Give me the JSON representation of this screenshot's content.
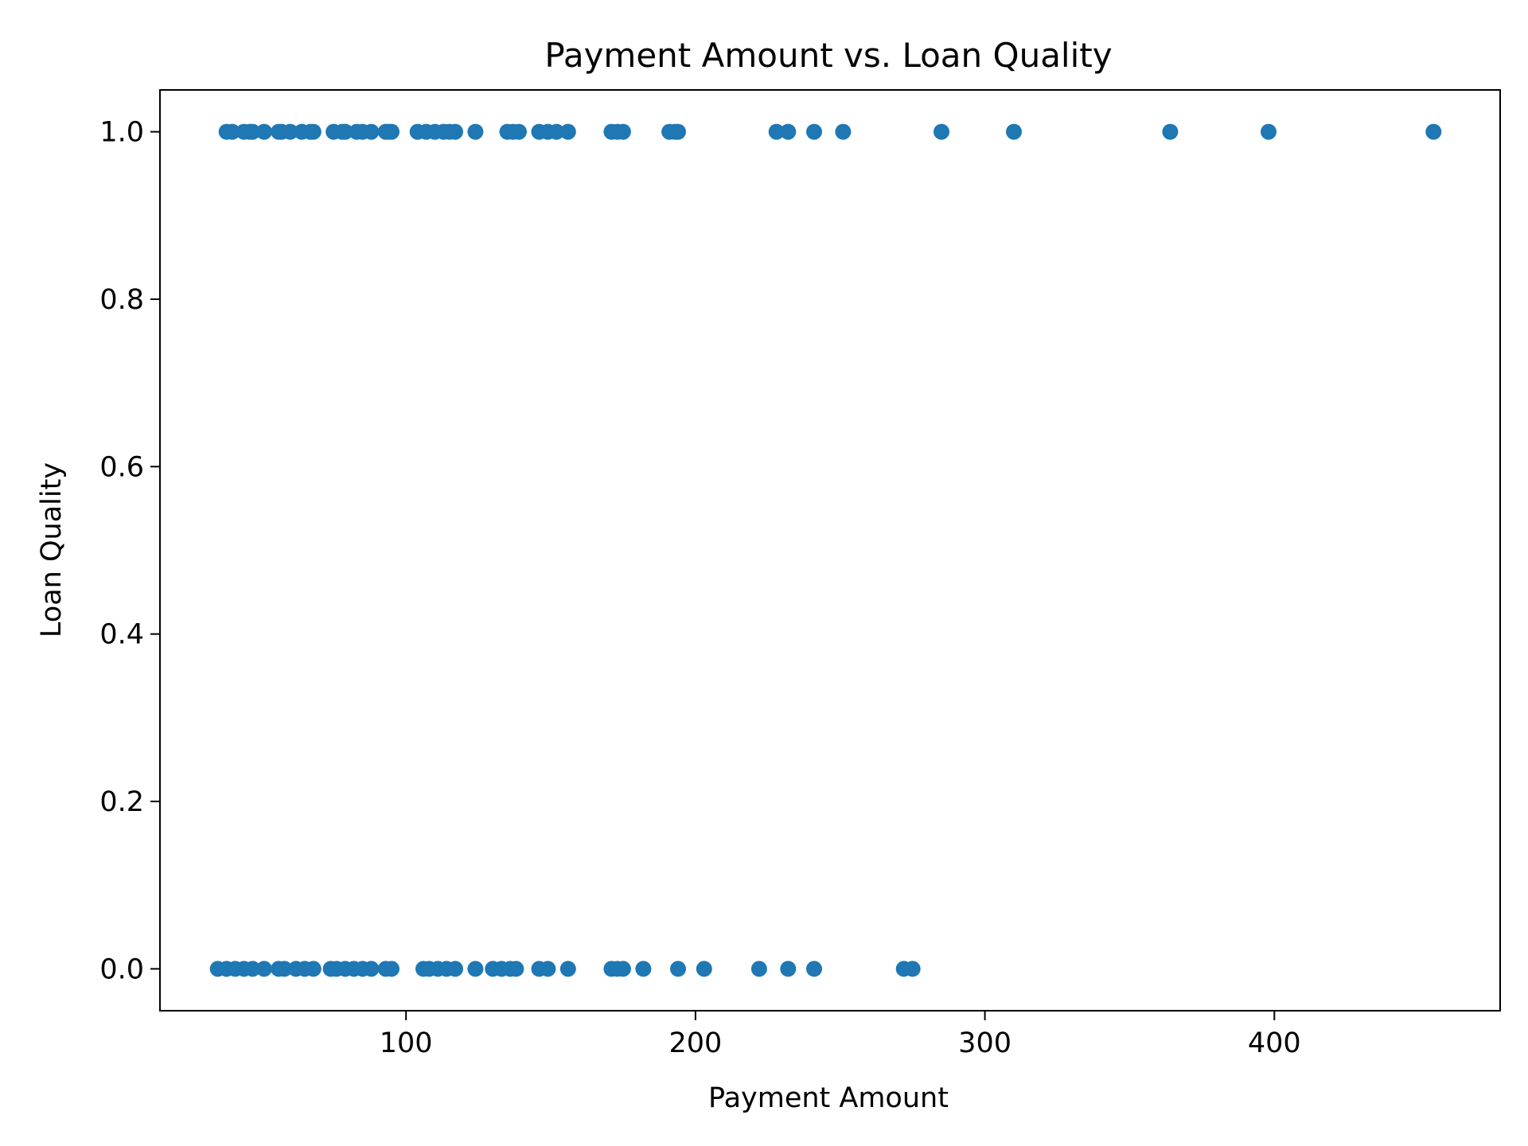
{
  "chart_data": {
    "type": "scatter",
    "title": "Payment Amount vs. Loan Quality",
    "xlabel": "Payment Amount",
    "ylabel": "Loan Quality",
    "xlim": [
      15,
      478
    ],
    "ylim": [
      -0.05,
      1.05
    ],
    "xticks": [
      100,
      200,
      300,
      400
    ],
    "xtick_labels": [
      "100",
      "200",
      "300",
      "400"
    ],
    "yticks": [
      0.0,
      0.2,
      0.4,
      0.6,
      0.8,
      1.0
    ],
    "ytick_labels": [
      "0.0",
      "0.2",
      "0.4",
      "0.6",
      "0.8",
      "1.0"
    ],
    "grid": false,
    "marker_color": "#1f77b4",
    "series": [
      {
        "x": [
          38,
          40,
          44,
          46,
          47,
          51,
          56,
          57,
          60,
          64,
          67,
          68,
          75,
          78,
          79,
          83,
          85,
          88,
          93,
          94,
          95,
          104,
          107,
          110,
          113,
          115,
          117,
          124,
          135,
          137,
          139,
          146,
          149,
          152,
          156,
          171,
          173,
          175,
          191,
          193,
          194,
          228,
          232,
          241,
          251,
          285,
          310,
          364,
          398,
          455
        ],
        "y": [
          1,
          1,
          1,
          1,
          1,
          1,
          1,
          1,
          1,
          1,
          1,
          1,
          1,
          1,
          1,
          1,
          1,
          1,
          1,
          1,
          1,
          1,
          1,
          1,
          1,
          1,
          1,
          1,
          1,
          1,
          1,
          1,
          1,
          1,
          1,
          1,
          1,
          1,
          1,
          1,
          1,
          1,
          1,
          1,
          1,
          1,
          1,
          1,
          1,
          1
        ]
      },
      {
        "x": [
          35,
          38,
          41,
          44,
          47,
          51,
          56,
          58,
          62,
          65,
          68,
          74,
          76,
          79,
          82,
          85,
          88,
          93,
          95,
          106,
          108,
          111,
          114,
          117,
          124,
          130,
          133,
          136,
          138,
          146,
          149,
          156,
          171,
          173,
          175,
          182,
          194,
          203,
          222,
          232,
          241,
          272,
          275
        ],
        "y": [
          0,
          0,
          0,
          0,
          0,
          0,
          0,
          0,
          0,
          0,
          0,
          0,
          0,
          0,
          0,
          0,
          0,
          0,
          0,
          0,
          0,
          0,
          0,
          0,
          0,
          0,
          0,
          0,
          0,
          0,
          0,
          0,
          0,
          0,
          0,
          0,
          0,
          0,
          0,
          0,
          0,
          0,
          0
        ]
      }
    ]
  }
}
